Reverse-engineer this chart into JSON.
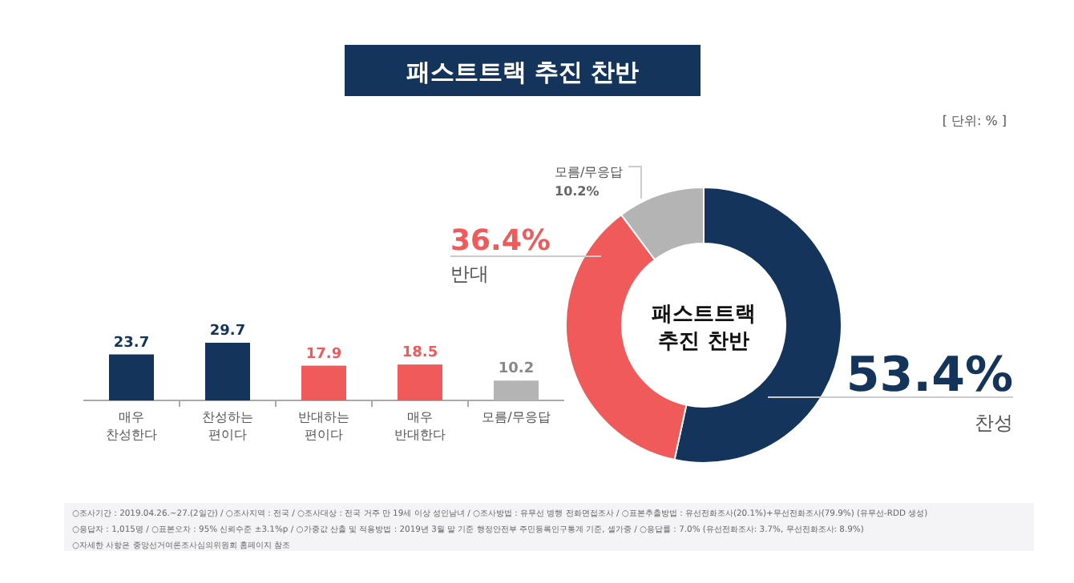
{
  "chart_data": [
    {
      "type": "bar",
      "title": "패스트트랙 추진 찬반",
      "categories": [
        "매우\n찬성한다",
        "찬성하는\n편이다",
        "반대하는\n편이다",
        "매우\n반대한다",
        "모름/무응답"
      ],
      "values": [
        23.7,
        29.7,
        17.9,
        18.5,
        10.2
      ],
      "colors": [
        "#14345b",
        "#14345b",
        "#f05a5a",
        "#f05a5a",
        "#b4b4b4"
      ],
      "data_labels": true,
      "annotations": [
        "○조사기간 : 2019.04.26.~27.(2일간) / ○조사지역 : 전국 / ○조사대상 : 전국 거주 만 19세 이상 성인남녀 / ○조사방법 : 유무선 병행 전화면접조사 / ○표본추출방법 : 유선전화조사(20.1%)+무선전화조사(79.9%) (유무선-RDD 생성)",
        "○응답자 : 1,015명 / ○표본오차 : 95% 신뢰수준 ±3.1%p / ○가중값 산출 및 적용방법 : 2019년 3월 말 기준 행정안전부 주민등록인구통계 기준, 셀가중 / ○응답률 : 7.0% (유선전화조사: 3.7%, 무선전화조사: 8.9%)",
        "○자세한 사항은 중앙선거여론조사심의위원회 홈페이지 참조"
      ]
    },
    {
      "type": "donut",
      "title": "패스트트랙\n추진 찬반",
      "categories": [
        "찬성",
        "반대",
        "모름/무응답"
      ],
      "values": [
        53.4,
        36.4,
        10.2
      ],
      "colors": [
        "#14345b",
        "#f05a5a",
        "#b4b4b4"
      ],
      "value_labels": [
        "53.4%",
        "36.4%",
        "10.2%"
      ],
      "annotations": [
        "[ 단위: % ]"
      ]
    }
  ]
}
